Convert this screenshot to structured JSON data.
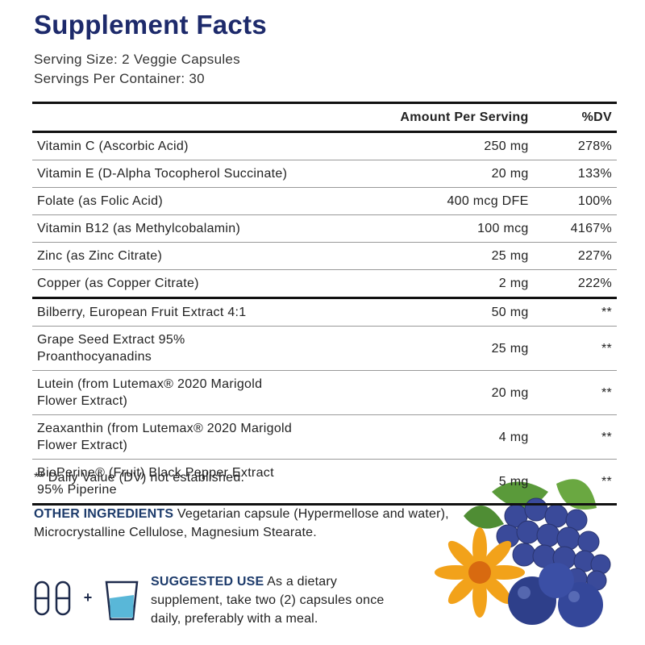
{
  "header": {
    "title": "Supplement Facts",
    "serving_size": "Serving Size: 2 Veggie Capsules",
    "servings_per_container": "Servings Per Container: 30"
  },
  "table": {
    "columns": [
      "Amount Per Serving",
      "%DV"
    ],
    "groups": [
      {
        "rows": [
          [
            "Vitamin C (Ascorbic Acid)",
            "250 mg",
            "278%"
          ],
          [
            "Vitamin E (D-Alpha Tocopherol Succinate)",
            "20 mg",
            "133%"
          ],
          [
            "Folate (as Folic Acid)",
            "400 mcg DFE",
            "100%"
          ],
          [
            "Vitamin B12 (as Methylcobalamin)",
            "100 mcg",
            "4167%"
          ],
          [
            "Zinc (as Zinc Citrate)",
            "25 mg",
            "227%"
          ],
          [
            "Copper (as Copper Citrate)",
            "2 mg",
            "222%"
          ]
        ]
      },
      {
        "rows": [
          [
            "Bilberry, European Fruit Extract 4:1",
            "50 mg",
            "**"
          ],
          [
            "Grape Seed Extract 95% Proanthocyanadins",
            "25 mg",
            "**"
          ],
          [
            "Lutein (from Lutemax® 2020 Marigold Flower Extract)",
            "20 mg",
            "**"
          ],
          [
            "Zeaxanthin (from Lutemax® 2020 Marigold Flower Extract)",
            "4 mg",
            "**"
          ],
          [
            "BioPerine® (Fruit) Black Pepper Extract 95% Piperine",
            "5 mg",
            "**"
          ]
        ]
      }
    ]
  },
  "footnote": "** Daily Value (DV) not established.",
  "other_ingredients": {
    "label": "OTHER INGREDIENTS",
    "text": "Vegetarian capsule (Hypermellose and water), Microcrystalline Cellulose, Magnesium Stearate."
  },
  "suggested_use": {
    "label": "SUGGESTED USE",
    "text": "As a dietary supplement, take two (2) capsules once daily, preferably with a meal."
  }
}
